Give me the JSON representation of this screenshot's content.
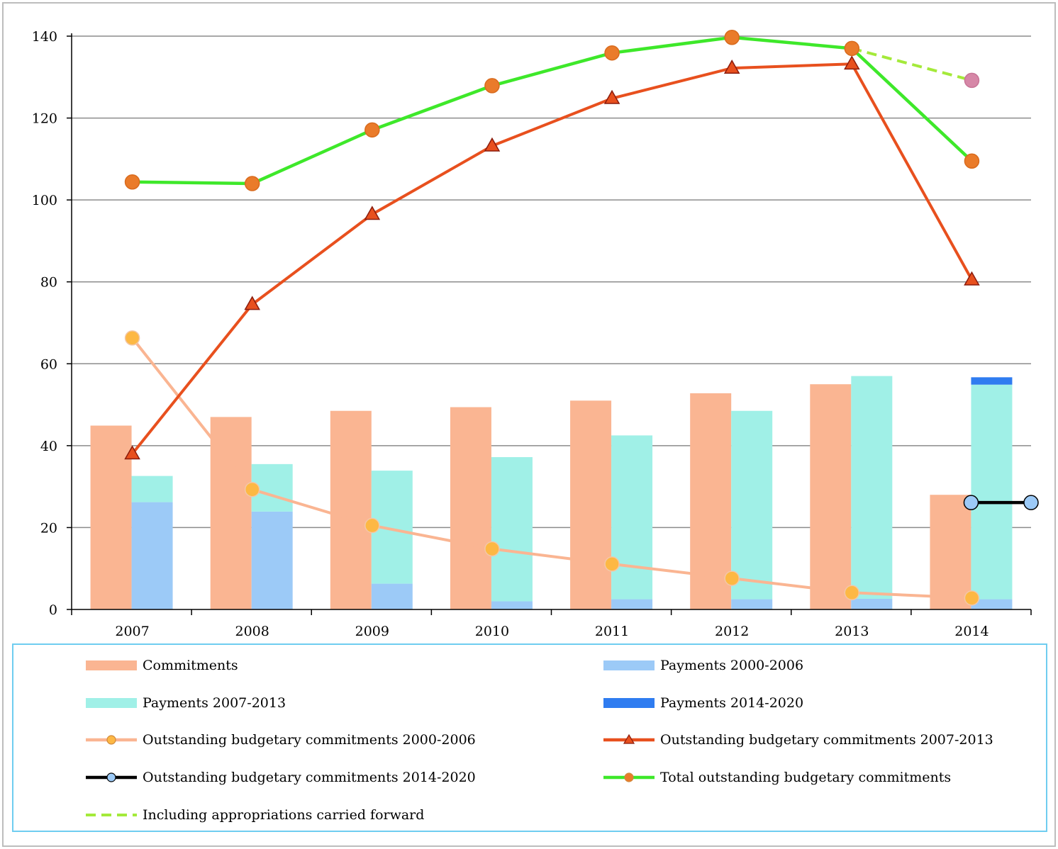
{
  "chart_data": {
    "type": "bar",
    "categories": [
      "2007",
      "2008",
      "2009",
      "2010",
      "2011",
      "2012",
      "2013",
      "2014"
    ],
    "ylim": [
      0,
      140
    ],
    "yticks": [
      "0",
      "20",
      "40",
      "60",
      "80",
      "100",
      "120",
      "140"
    ],
    "grid": true,
    "legend_position": "bottom",
    "bars": [
      {
        "name": "Commitments",
        "kind": "bar",
        "color": "#fab592",
        "values": [
          44.9,
          47.0,
          48.5,
          49.4,
          51.0,
          52.8,
          55.0,
          28.0
        ]
      },
      {
        "name": "Payments 2000-2006",
        "kind": "stacked-bar",
        "color": "#9ccaf7",
        "values": [
          26.2,
          23.9,
          6.3,
          2.0,
          2.5,
          2.5,
          2.6,
          2.5
        ]
      },
      {
        "name": "Payments 2007-2013",
        "kind": "stacked-bar",
        "color": "#a0f0e7",
        "values": [
          6.4,
          11.6,
          27.6,
          35.2,
          40.0,
          46.0,
          54.4,
          52.4
        ]
      },
      {
        "name": "Payments 2014-2020",
        "kind": "stacked-bar",
        "color": "#2f7cf0",
        "values": [
          0,
          0,
          0,
          0,
          0,
          0,
          0,
          1.8
        ]
      }
    ],
    "lines": [
      {
        "name": "Outstanding budgetary commitments 2000-2006",
        "color": "#fab592",
        "marker": "circle",
        "marker_fill": "#fdb844",
        "values": [
          66.3,
          29.3,
          20.5,
          14.8,
          11.1,
          7.6,
          4.1,
          2.8
        ]
      },
      {
        "name": "Outstanding budgetary commitments 2007-2013",
        "color": "#e8501e",
        "marker": "triangle",
        "marker_fill": "#e8501e",
        "values": [
          38.0,
          74.5,
          96.5,
          113.2,
          124.8,
          132.2,
          133.2,
          80.5
        ]
      },
      {
        "name": "Outstanding budgetary commitments 2014-2020",
        "color": "#000000",
        "marker": "circle",
        "marker_fill": "#9ccaf7",
        "points": [
          [
            7,
            26.1
          ],
          [
            7.5,
            26.1
          ]
        ]
      },
      {
        "name": "Total outstanding budgetary commitments",
        "color": "#3ee82a",
        "marker": "circle",
        "marker_fill": "#ea7b2a",
        "values": [
          104.4,
          104.0,
          117.1,
          127.9,
          135.9,
          139.7,
          137.0,
          109.5
        ]
      },
      {
        "name": "Including appropriations carried forward",
        "color": "#a4ea3a",
        "dashed": true,
        "marker_last_fill": "#d687a7",
        "points": [
          [
            6,
            137.0
          ],
          [
            7,
            129.2
          ]
        ]
      }
    ]
  },
  "legend": [
    {
      "label": "Commitments",
      "type": "bar",
      "color": "#fab592"
    },
    {
      "label": "Payments 2000-2006",
      "type": "bar",
      "color": "#9ccaf7"
    },
    {
      "label": "Payments 2007-2013",
      "type": "bar",
      "color": "#a0f0e7"
    },
    {
      "label": "Payments 2014-2020",
      "type": "bar",
      "color": "#2f7cf0"
    },
    {
      "label": "Outstanding budgetary commitments 2000-2006",
      "type": "line",
      "color": "#fab592",
      "marker": "circle",
      "marker_fill": "#fdb844"
    },
    {
      "label": "Outstanding budgetary commitments 2007-2013",
      "type": "line",
      "color": "#e8501e",
      "marker": "triangle",
      "marker_fill": "#e8501e"
    },
    {
      "label": "Outstanding budgetary commitments 2014-2020",
      "type": "line",
      "color": "#000000",
      "marker": "circle",
      "marker_fill": "#9ccaf7"
    },
    {
      "label": "Total outstanding budgetary commitments",
      "type": "line",
      "color": "#3ee82a",
      "marker": "circle",
      "marker_fill": "#ea7b2a"
    },
    {
      "label": "Including appropriations carried forward",
      "type": "dashed",
      "color": "#a4ea3a"
    }
  ]
}
